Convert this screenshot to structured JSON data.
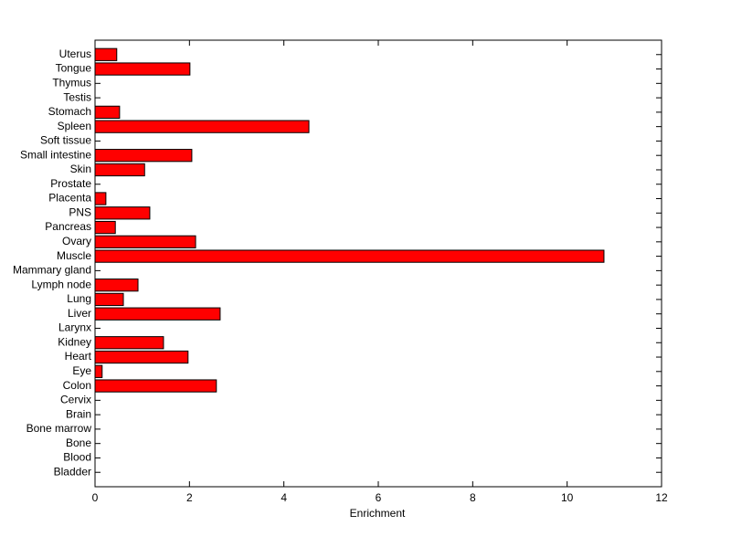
{
  "chart_data": {
    "type": "barh",
    "xlabel": "Enrichment",
    "categories": [
      "Bladder",
      "Blood",
      "Bone",
      "Bone marrow",
      "Brain",
      "Cervix",
      "Colon",
      "Eye",
      "Heart",
      "Kidney",
      "Larynx",
      "Liver",
      "Lung",
      "Lymph node",
      "Mammary gland",
      "Muscle",
      "Ovary",
      "Pancreas",
      "PNS",
      "Placenta",
      "Prostate",
      "Skin",
      "Small intestine",
      "Soft tissue",
      "Spleen",
      "Stomach",
      "Testis",
      "Thymus",
      "Tongue",
      "Uterus"
    ],
    "values": [
      0,
      0,
      0,
      0,
      0,
      0,
      2.57,
      0.15,
      1.97,
      1.45,
      0,
      2.65,
      0.6,
      0.91,
      0,
      10.78,
      2.13,
      0.43,
      1.16,
      0.23,
      0,
      1.05,
      2.05,
      0,
      4.53,
      0.52,
      0,
      0,
      2.01,
      0.46
    ],
    "color": "#ff0000",
    "xlim": [
      0,
      12
    ],
    "xticks": [
      0,
      2,
      4,
      6,
      8,
      10,
      12
    ],
    "grid": false
  }
}
